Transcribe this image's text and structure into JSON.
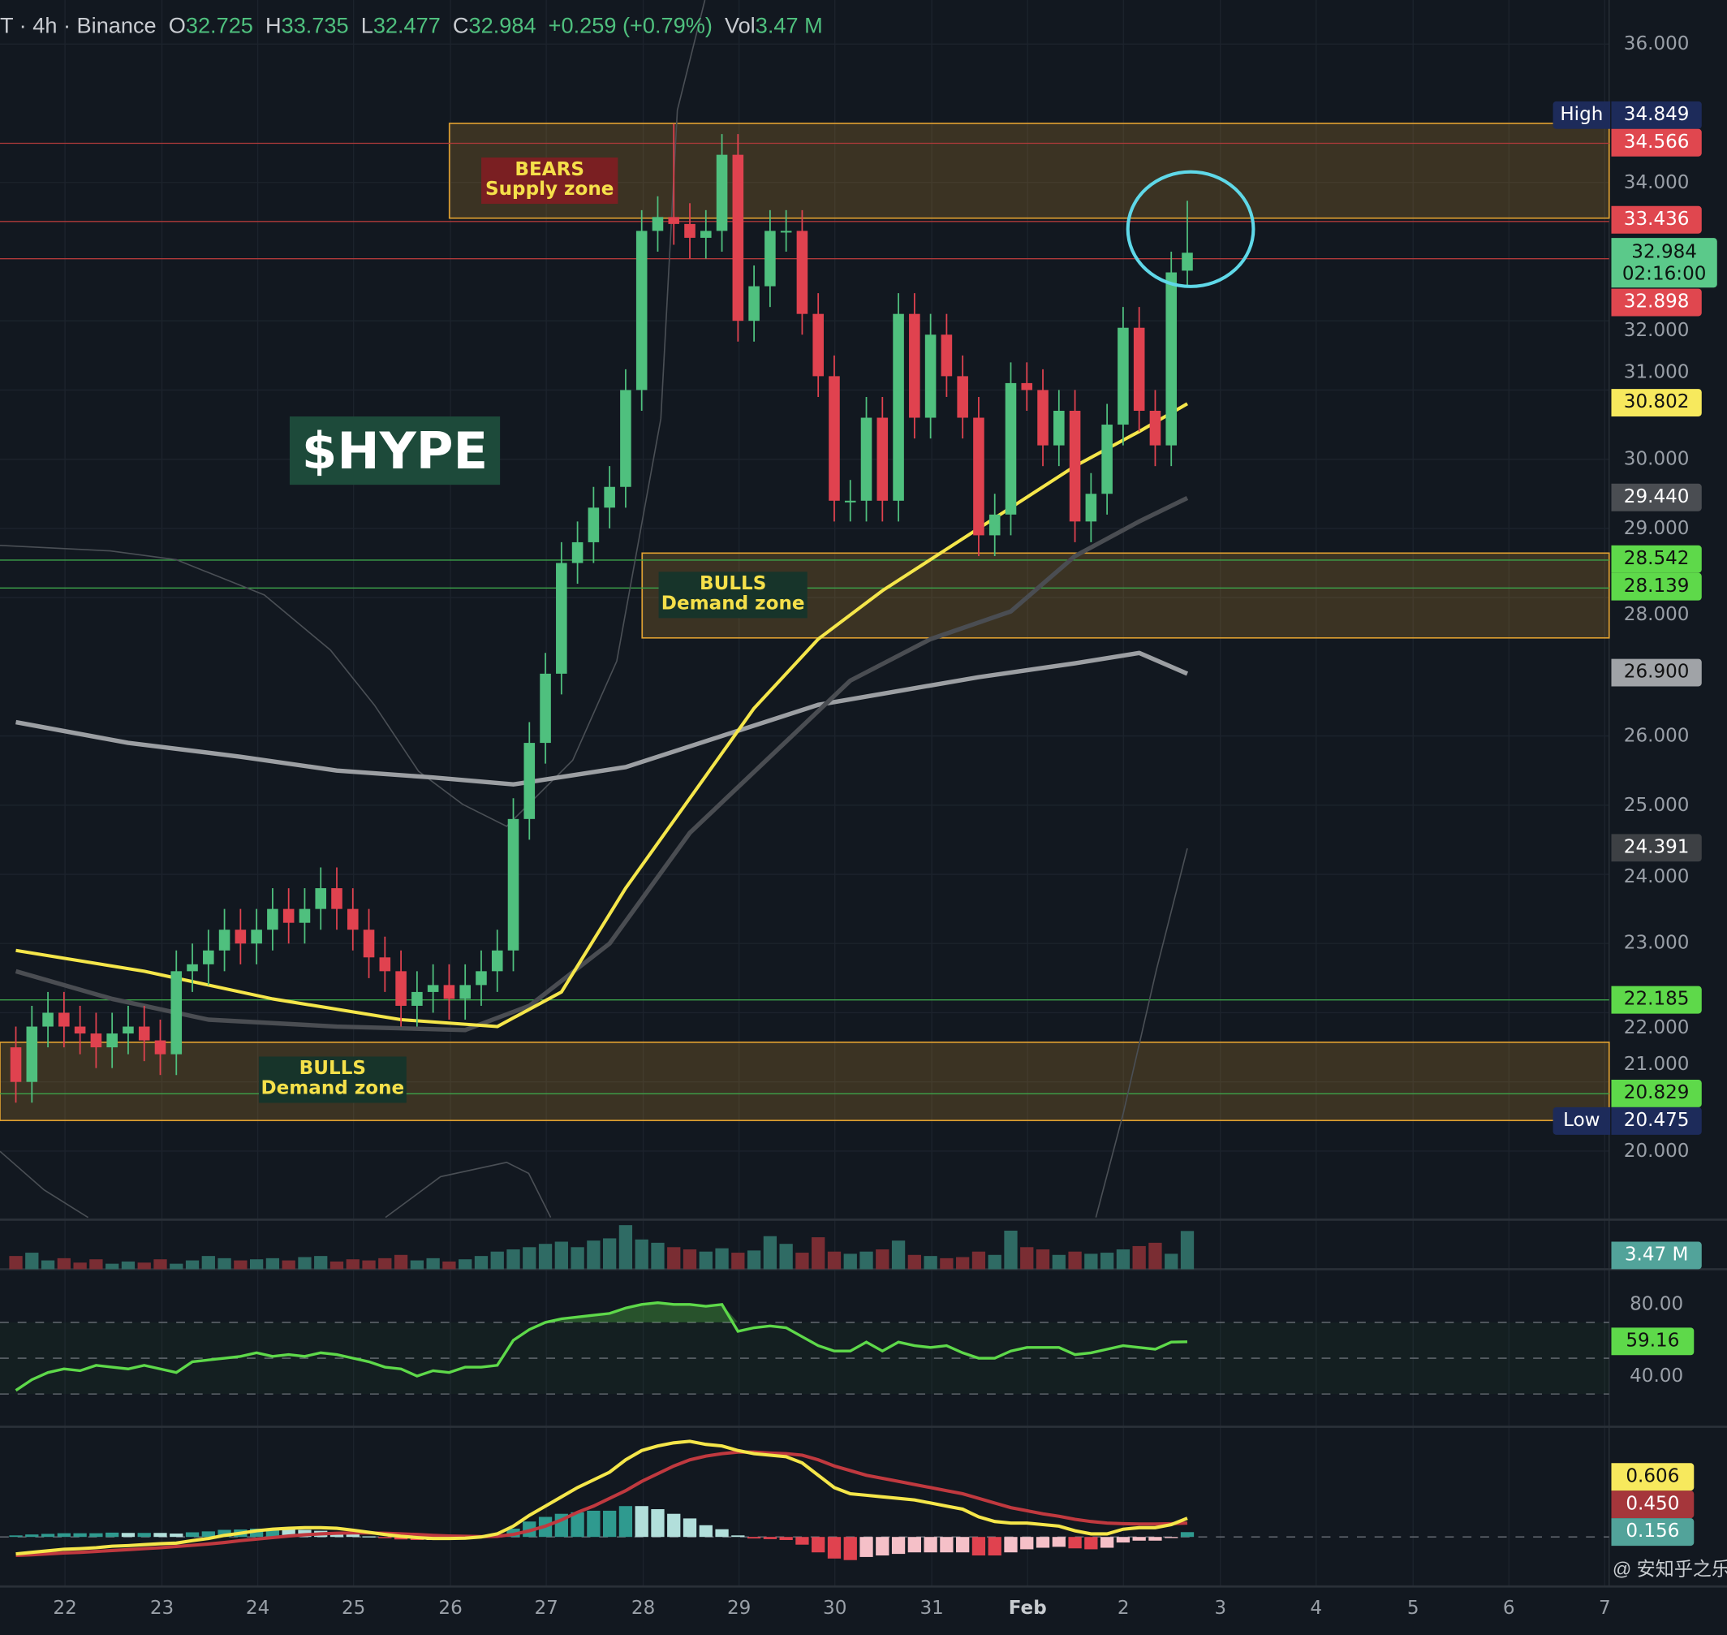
{
  "header": {
    "symbol": "T",
    "interval": "4h",
    "exchange": "Binance",
    "open_label": "O",
    "open": "32.725",
    "high_label": "H",
    "high": "33.735",
    "low_label": "L",
    "low": "32.477",
    "close_label": "C",
    "close": "32.984",
    "change": "+0.259 (+0.79%)",
    "vol_label": "Vol",
    "vol": "3.47 M"
  },
  "annotations": {
    "title": "$HYPE",
    "supply": {
      "line1": "BEARS",
      "line2": "Supply zone"
    },
    "demand1": {
      "line1": "BULLS",
      "line2": "Demand zone"
    },
    "demand2": {
      "line1": "BULLS",
      "line2": "Demand zone"
    }
  },
  "price_axis": {
    "ticks": [
      "36.000",
      "34.000",
      "32.000",
      "31.000",
      "30.000",
      "29.000",
      "28.000",
      "26.000",
      "25.000",
      "24.000",
      "23.000",
      "22.000",
      "21.000",
      "20.000"
    ],
    "high_tag": "High",
    "low_tag": "Low",
    "badges": {
      "high": "34.849",
      "r1": "34.566",
      "r2": "33.436",
      "last": "32.984",
      "countdown": "02:16:00",
      "r3": "32.898",
      "ema_fast": "30.802",
      "ema_mid": "29.440",
      "g1": "28.542",
      "g2": "28.139",
      "sma": "26.900",
      "bb": "24.391",
      "g3": "22.185",
      "g4": "20.829",
      "low": "20.475"
    }
  },
  "volume_panel": {
    "badge": "3.47 M"
  },
  "rsi_panel": {
    "ticks": [
      "80.00",
      "40.00"
    ],
    "badge": "59.16"
  },
  "macd_panel": {
    "macd": "0.606",
    "signal": "0.450",
    "hist": "0.156"
  },
  "time_axis": [
    "22",
    "23",
    "24",
    "25",
    "26",
    "27",
    "28",
    "29",
    "30",
    "31",
    "Feb",
    "2",
    "3",
    "4",
    "5",
    "6",
    "7"
  ],
  "watermark": "@ 安知乎之乐",
  "colors": {
    "up": "#4fc07e",
    "down": "#e0424f",
    "ema_fast": "#f5e64a",
    "ema_mid": "#4a4d52",
    "sma": "#9c9fa3",
    "rsi": "#5ed94a",
    "zone": "#e0a030",
    "circle": "#5fd8e8"
  },
  "chart_data": {
    "type": "candlestick",
    "title": "HYPE · 4h · Binance",
    "ylim": [
      19.3,
      36.3
    ],
    "closes": [
      21.0,
      21.8,
      22.0,
      21.8,
      21.7,
      21.5,
      21.7,
      21.8,
      21.6,
      21.4,
      22.6,
      22.7,
      22.9,
      23.2,
      23.0,
      23.2,
      23.5,
      23.3,
      23.5,
      23.8,
      23.5,
      23.2,
      22.8,
      22.6,
      22.1,
      22.3,
      22.4,
      22.2,
      22.4,
      22.6,
      22.9,
      24.8,
      25.9,
      26.9,
      28.5,
      28.8,
      29.3,
      29.6,
      31.0,
      33.3,
      33.5,
      33.4,
      33.2,
      33.3,
      34.4,
      32.0,
      32.5,
      33.3,
      33.3,
      32.1,
      31.2,
      29.4,
      29.4,
      30.6,
      29.4,
      32.1,
      30.6,
      31.8,
      31.2,
      30.6,
      28.9,
      29.2,
      31.1,
      31.0,
      30.2,
      30.7,
      29.1,
      29.5,
      30.5,
      31.9,
      30.7,
      30.2,
      32.7,
      32.984
    ],
    "first_open": 21.5,
    "wick_pad": 0.3,
    "last_candle": {
      "o": 32.725,
      "h": 33.735,
      "l": 32.477,
      "c": 32.984
    },
    "period_high": 34.849,
    "period_low": 20.475,
    "volume_m": [
      1.2,
      1.5,
      0.8,
      1.0,
      0.6,
      0.9,
      0.5,
      0.7,
      0.6,
      0.9,
      0.5,
      0.8,
      1.2,
      1.0,
      0.8,
      0.9,
      1.0,
      0.8,
      1.1,
      1.2,
      0.7,
      0.9,
      0.8,
      1.0,
      1.3,
      0.8,
      1.0,
      0.7,
      0.9,
      1.2,
      1.6,
      1.8,
      2.0,
      2.3,
      2.5,
      2.0,
      2.6,
      2.8,
      4.0,
      2.7,
      2.4,
      2.0,
      1.8,
      1.6,
      1.9,
      1.5,
      1.7,
      3.0,
      2.3,
      1.5,
      2.9,
      1.6,
      1.4,
      1.6,
      1.8,
      2.6,
      1.3,
      1.2,
      1.0,
      1.1,
      1.6,
      1.3,
      3.5,
      2.0,
      1.8,
      1.3,
      1.6,
      1.4,
      1.5,
      1.8,
      2.1,
      2.4,
      1.4,
      3.47
    ],
    "rsi": [
      32,
      38,
      42,
      44,
      43,
      46,
      45,
      44,
      46,
      44,
      42,
      48,
      49,
      50,
      51,
      53,
      51,
      52,
      51,
      53,
      52,
      50,
      48,
      45,
      44,
      40,
      43,
      42,
      45,
      45,
      46,
      60,
      66,
      70,
      72,
      73,
      74,
      75,
      78,
      80,
      81,
      80,
      80,
      79,
      80,
      65,
      67,
      68,
      67,
      62,
      57,
      54,
      54,
      59,
      54,
      59,
      57,
      56,
      57,
      53,
      50,
      50,
      54,
      56,
      56,
      56,
      52,
      53,
      55,
      57,
      56,
      55,
      59,
      59.16
    ],
    "rsi_levels": [
      70,
      50,
      30
    ],
    "macd": [
      -0.55,
      -0.5,
      -0.45,
      -0.4,
      -0.38,
      -0.35,
      -0.3,
      -0.28,
      -0.25,
      -0.22,
      -0.2,
      -0.12,
      -0.05,
      0.05,
      0.12,
      0.2,
      0.25,
      0.28,
      0.3,
      0.3,
      0.28,
      0.22,
      0.15,
      0.08,
      0.02,
      -0.02,
      -0.05,
      -0.05,
      -0.04,
      0.0,
      0.1,
      0.35,
      0.7,
      1.0,
      1.3,
      1.6,
      1.85,
      2.1,
      2.5,
      2.8,
      2.95,
      3.05,
      3.1,
      3.0,
      2.95,
      2.8,
      2.7,
      2.65,
      2.6,
      2.4,
      2.0,
      1.6,
      1.4,
      1.35,
      1.3,
      1.25,
      1.2,
      1.1,
      1.0,
      0.9,
      0.65,
      0.5,
      0.45,
      0.45,
      0.4,
      0.35,
      0.2,
      0.1,
      0.1,
      0.25,
      0.3,
      0.3,
      0.4,
      0.606
    ],
    "signal": [
      -0.6,
      -0.58,
      -0.55,
      -0.52,
      -0.5,
      -0.47,
      -0.44,
      -0.41,
      -0.38,
      -0.35,
      -0.31,
      -0.27,
      -0.23,
      -0.18,
      -0.12,
      -0.07,
      -0.02,
      0.03,
      0.07,
      0.1,
      0.12,
      0.13,
      0.13,
      0.12,
      0.1,
      0.08,
      0.05,
      0.03,
      0.02,
      0.01,
      0.02,
      0.08,
      0.2,
      0.35,
      0.55,
      0.8,
      1.0,
      1.25,
      1.5,
      1.8,
      2.05,
      2.3,
      2.5,
      2.62,
      2.7,
      2.75,
      2.75,
      2.72,
      2.7,
      2.65,
      2.5,
      2.3,
      2.15,
      2.0,
      1.9,
      1.8,
      1.7,
      1.6,
      1.5,
      1.4,
      1.25,
      1.1,
      0.95,
      0.85,
      0.75,
      0.67,
      0.57,
      0.5,
      0.45,
      0.43,
      0.42,
      0.42,
      0.43,
      0.45
    ],
    "ema_fast_pts": [
      [
        0,
        22.9
      ],
      [
        8,
        22.6
      ],
      [
        16,
        22.2
      ],
      [
        24,
        21.9
      ],
      [
        30,
        21.8
      ],
      [
        34,
        22.3
      ],
      [
        38,
        23.8
      ],
      [
        42,
        25.1
      ],
      [
        46,
        26.4
      ],
      [
        50,
        27.4
      ],
      [
        54,
        28.1
      ],
      [
        58,
        28.7
      ],
      [
        62,
        29.3
      ],
      [
        66,
        29.9
      ],
      [
        70,
        30.4
      ],
      [
        73,
        30.802
      ]
    ],
    "ema_mid_pts": [
      [
        0,
        22.6
      ],
      [
        6,
        22.2
      ],
      [
        12,
        21.9
      ],
      [
        20,
        21.8
      ],
      [
        28,
        21.75
      ],
      [
        32,
        22.1
      ],
      [
        37,
        23.0
      ],
      [
        42,
        24.6
      ],
      [
        47,
        25.7
      ],
      [
        52,
        26.8
      ],
      [
        57,
        27.4
      ],
      [
        62,
        27.8
      ],
      [
        66,
        28.6
      ],
      [
        70,
        29.1
      ],
      [
        73,
        29.44
      ]
    ],
    "sma_pts": [
      [
        0,
        26.2
      ],
      [
        7,
        25.9
      ],
      [
        14,
        25.7
      ],
      [
        20,
        25.5
      ],
      [
        26,
        25.4
      ],
      [
        31,
        25.3
      ],
      [
        38,
        25.55
      ],
      [
        44,
        26.0
      ],
      [
        50,
        26.45
      ],
      [
        55,
        26.65
      ],
      [
        60,
        26.85
      ],
      [
        66,
        27.05
      ],
      [
        70,
        27.2
      ],
      [
        73,
        26.9
      ]
    ]
  }
}
